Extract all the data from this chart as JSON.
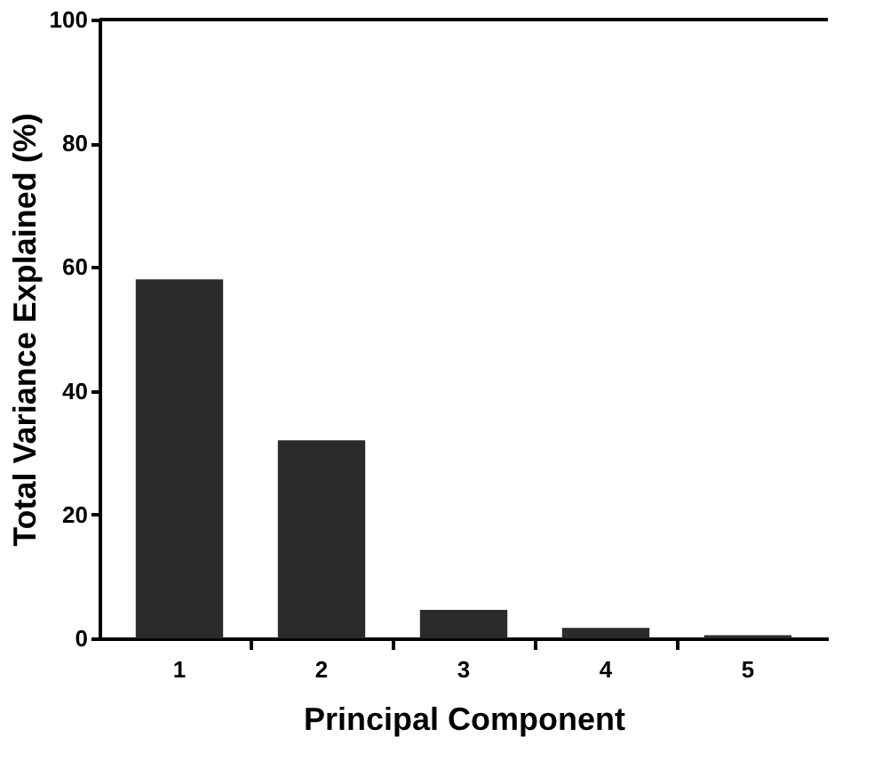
{
  "chart_data": {
    "type": "bar",
    "xlabel": "Principal Component",
    "ylabel": "Total Variance Explained (%)",
    "categories": [
      "1",
      "2",
      "3",
      "4",
      "5"
    ],
    "values": [
      58,
      32,
      4.6,
      1.7,
      0.5
    ],
    "color": "#2b2b2b",
    "ylim": [
      0,
      100
    ],
    "yticks": [
      0,
      20,
      40,
      60,
      80,
      100
    ],
    "grid": false
  }
}
